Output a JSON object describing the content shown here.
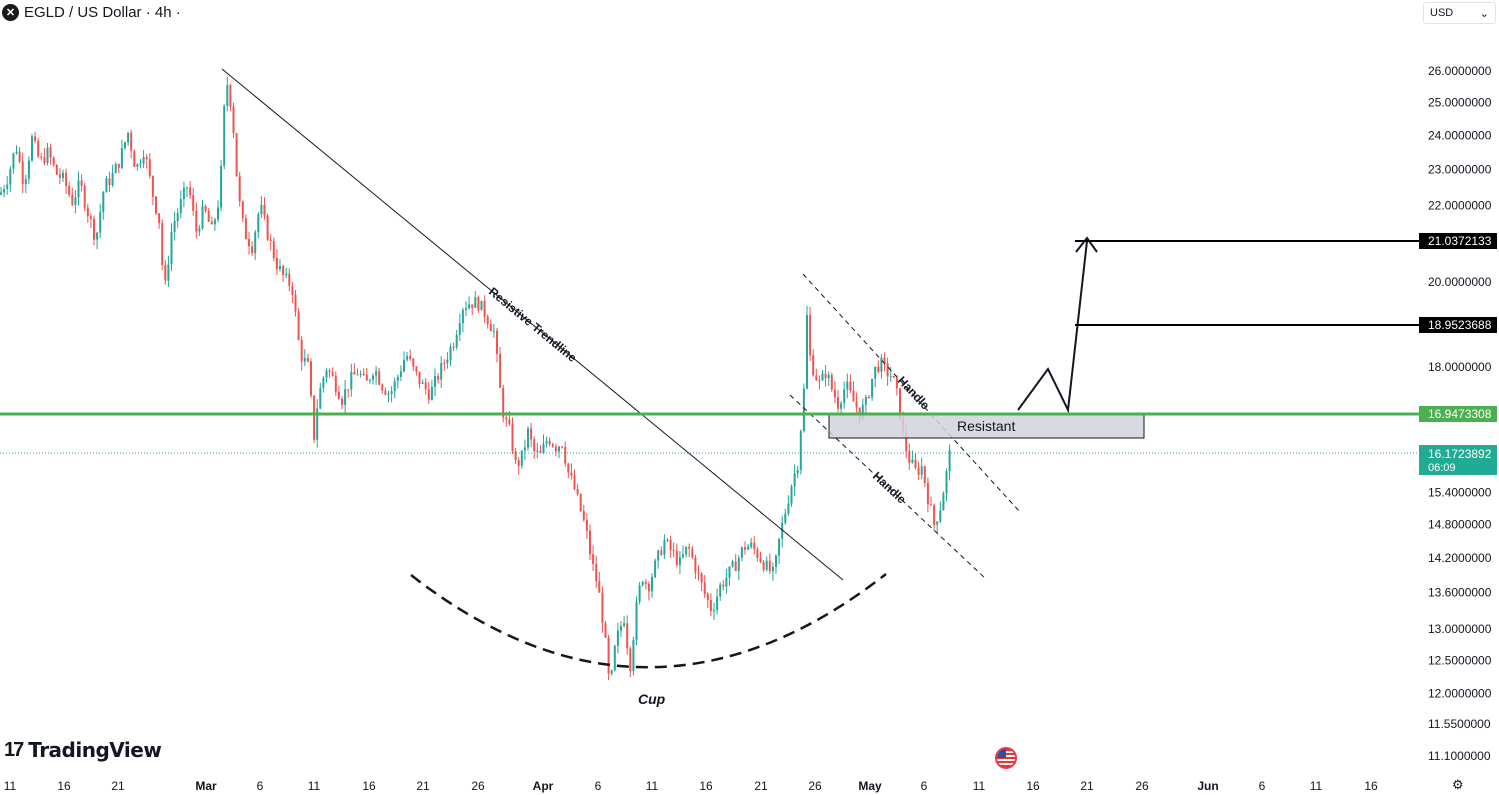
{
  "header": {
    "symbol_icon": "x-icon",
    "symbol_glyph": "✕",
    "title": "EGLD / US Dollar · 4h ·"
  },
  "currency_selector": {
    "value": "USD"
  },
  "branding": {
    "name": "TradingView",
    "icon": "tradingview-logo-icon"
  },
  "chart_data": {
    "type": "candlestick",
    "symbol": "EGLD / US Dollar",
    "interval": "4h",
    "y_axis_ticks": [
      26.0,
      25.0,
      24.0,
      23.0,
      22.0,
      20.0,
      18.0,
      15.4,
      14.8,
      14.2,
      13.6,
      13.0,
      12.5,
      12.0,
      11.55,
      11.1
    ],
    "y_axis_tick_labels": [
      "26.0000000",
      "25.0000000",
      "24.0000000",
      "23.0000000",
      "22.0000000",
      "20.0000000",
      "18.0000000",
      "15.4000000",
      "14.8000000",
      "14.2000000",
      "13.6000000",
      "13.0000000",
      "12.5000000",
      "12.0000000",
      "11.5500000",
      "11.1000000"
    ],
    "x_axis_tick_labels": [
      "11",
      "16",
      "21",
      "Mar",
      "6",
      "11",
      "16",
      "21",
      "26",
      "Apr",
      "6",
      "11",
      "16",
      "21",
      "26",
      "May",
      "6",
      "11",
      "16",
      "21",
      "26",
      "Jun",
      "6",
      "11",
      "16"
    ],
    "price_path": [
      [
        0,
        22.3
      ],
      [
        8,
        22.8
      ],
      [
        16,
        23.7
      ],
      [
        24,
        22.6
      ],
      [
        32,
        23.9
      ],
      [
        40,
        23.2
      ],
      [
        48,
        23.5
      ],
      [
        56,
        22.9
      ],
      [
        64,
        22.7
      ],
      [
        72,
        22.1
      ],
      [
        80,
        22.6
      ],
      [
        88,
        21.8
      ],
      [
        96,
        21.1
      ],
      [
        104,
        22.5
      ],
      [
        112,
        22.8
      ],
      [
        120,
        23.3
      ],
      [
        128,
        24.1
      ],
      [
        136,
        23.0
      ],
      [
        144,
        23.6
      ],
      [
        152,
        22.4
      ],
      [
        160,
        21.5
      ],
      [
        164,
        19.6
      ],
      [
        172,
        21.4
      ],
      [
        180,
        22.0
      ],
      [
        188,
        22.6
      ],
      [
        196,
        21.3
      ],
      [
        204,
        21.9
      ],
      [
        212,
        21.3
      ],
      [
        220,
        22.3
      ],
      [
        226,
        25.8
      ],
      [
        232,
        24.8
      ],
      [
        238,
        22.3
      ],
      [
        244,
        21.3
      ],
      [
        252,
        20.9
      ],
      [
        260,
        22.0
      ],
      [
        268,
        21.2
      ],
      [
        276,
        20.5
      ],
      [
        284,
        20.1
      ],
      [
        292,
        19.9
      ],
      [
        300,
        18.3
      ],
      [
        308,
        18.0
      ],
      [
        314,
        16.5
      ],
      [
        318,
        17.3
      ],
      [
        326,
        18.0
      ],
      [
        334,
        17.7
      ],
      [
        342,
        17.3
      ],
      [
        350,
        17.7
      ],
      [
        358,
        17.9
      ],
      [
        366,
        17.6
      ],
      [
        374,
        18.0
      ],
      [
        382,
        17.6
      ],
      [
        390,
        17.4
      ],
      [
        398,
        17.8
      ],
      [
        406,
        18.3
      ],
      [
        414,
        17.9
      ],
      [
        422,
        17.6
      ],
      [
        430,
        17.4
      ],
      [
        438,
        17.8
      ],
      [
        446,
        18.2
      ],
      [
        454,
        18.6
      ],
      [
        462,
        19.4
      ],
      [
        470,
        19.5
      ],
      [
        478,
        19.5
      ],
      [
        486,
        19.2
      ],
      [
        494,
        18.8
      ],
      [
        500,
        17.5
      ],
      [
        504,
        16.9
      ],
      [
        510,
        16.6
      ],
      [
        516,
        15.9
      ],
      [
        522,
        16.1
      ],
      [
        528,
        16.6
      ],
      [
        534,
        16.2
      ],
      [
        540,
        16.1
      ],
      [
        548,
        16.5
      ],
      [
        556,
        16.3
      ],
      [
        562,
        16.4
      ],
      [
        568,
        15.8
      ],
      [
        574,
        15.5
      ],
      [
        580,
        15.1
      ],
      [
        586,
        14.7
      ],
      [
        592,
        14.1
      ],
      [
        598,
        13.7
      ],
      [
        604,
        13.0
      ],
      [
        610,
        12.0
      ],
      [
        614,
        12.6
      ],
      [
        618,
        12.9
      ],
      [
        624,
        13.2
      ],
      [
        630,
        12.4
      ],
      [
        636,
        13.3
      ],
      [
        642,
        13.9
      ],
      [
        648,
        13.7
      ],
      [
        656,
        14.1
      ],
      [
        664,
        14.5
      ],
      [
        672,
        14.3
      ],
      [
        680,
        14.1
      ],
      [
        688,
        14.4
      ],
      [
        696,
        14.0
      ],
      [
        704,
        13.6
      ],
      [
        712,
        13.3
      ],
      [
        720,
        13.7
      ],
      [
        728,
        13.9
      ],
      [
        736,
        14.1
      ],
      [
        744,
        14.4
      ],
      [
        752,
        14.4
      ],
      [
        760,
        14.2
      ],
      [
        768,
        14.0
      ],
      [
        774,
        13.9
      ],
      [
        780,
        14.6
      ],
      [
        786,
        15.1
      ],
      [
        792,
        15.6
      ],
      [
        798,
        16.0
      ],
      [
        804,
        17.5
      ],
      [
        806,
        19.9
      ],
      [
        808,
        18.4
      ],
      [
        814,
        17.9
      ],
      [
        820,
        17.6
      ],
      [
        826,
        17.9
      ],
      [
        832,
        17.5
      ],
      [
        838,
        17.2
      ],
      [
        846,
        17.6
      ],
      [
        852,
        17.3
      ],
      [
        860,
        17.0
      ],
      [
        866,
        17.2
      ],
      [
        874,
        17.9
      ],
      [
        880,
        18.1
      ],
      [
        886,
        17.9
      ],
      [
        892,
        17.8
      ],
      [
        898,
        17.3
      ],
      [
        904,
        16.4
      ],
      [
        910,
        16.0
      ],
      [
        916,
        15.8
      ],
      [
        922,
        15.9
      ],
      [
        928,
        15.3
      ],
      [
        934,
        14.8
      ],
      [
        940,
        15.1
      ],
      [
        946,
        15.7
      ],
      [
        950,
        16.2
      ]
    ],
    "horizontal_levels": [
      {
        "value": 21.0372133,
        "label": "21.0372133",
        "color": "#000000"
      },
      {
        "value": 18.9523688,
        "label": "18.9523688",
        "color": "#000000"
      },
      {
        "value": 16.9473308,
        "label": "16.9473308",
        "color": "#4caf50"
      }
    ],
    "current_price": {
      "label": "16.1723892",
      "countdown": "06:09",
      "color": "#22ab94"
    },
    "annotations": {
      "trendline_label": "Resistive Trendline",
      "handle_label_upper": "Handle",
      "handle_label_lower": "Handle",
      "resistance_box_label": "Resistant",
      "cup_label": "Cup"
    },
    "colors": {
      "up": "#26a69a",
      "down": "#ef5350",
      "support_line": "#4caf50",
      "dotted_price_line": "#26a69a"
    }
  }
}
